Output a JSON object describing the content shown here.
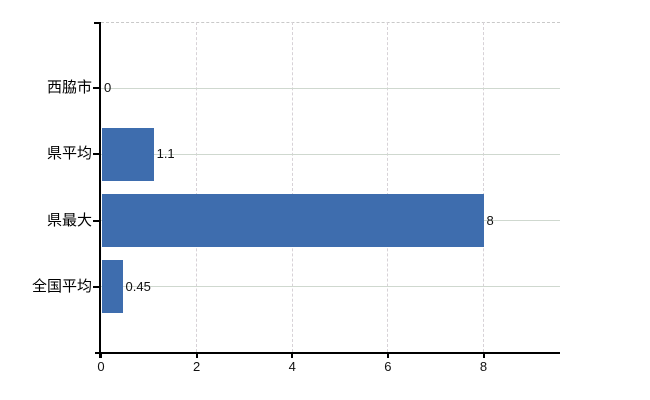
{
  "chart_data": {
    "type": "bar",
    "orientation": "horizontal",
    "title": "",
    "xlabel": "",
    "ylabel": "",
    "categories": [
      "西脇市",
      "県平均",
      "県最大",
      "全国平均"
    ],
    "values": [
      0,
      1.1,
      8,
      0.45
    ],
    "value_labels": [
      "0",
      "1.1",
      "8",
      "0.45"
    ],
    "x_ticks": [
      0,
      2,
      4,
      6,
      8
    ],
    "x_tick_labels": [
      "0",
      "2",
      "4",
      "6",
      "8"
    ],
    "xlim": [
      0,
      9.6
    ],
    "grid": true,
    "legend": "none",
    "colors": {
      "bar": "#3e6dae",
      "axis": "#000000",
      "horizontal_gridline": "#cfd8cf",
      "vertical_gridline": "#d7d2d7",
      "top_border_dashed": "#c9c9c9",
      "text": "#111111",
      "background": "#ffffff"
    }
  }
}
